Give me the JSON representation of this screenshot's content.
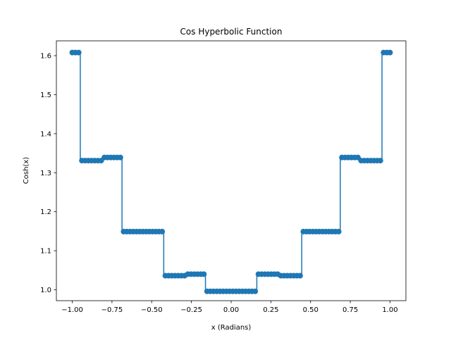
{
  "chart_data": {
    "type": "line",
    "title": "Cos Hyperbolic Function",
    "xlabel": "x (Radians)",
    "ylabel": "Cosh(x)",
    "xlim": [
      -1.1,
      1.1
    ],
    "ylim": [
      0.972,
      1.638
    ],
    "xticks": [
      -1.0,
      -0.75,
      -0.5,
      -0.25,
      0.0,
      0.25,
      0.5,
      0.75,
      1.0
    ],
    "xtick_labels": [
      "−1.00",
      "−0.75",
      "−0.50",
      "−0.25",
      "0.00",
      "0.25",
      "0.50",
      "0.75",
      "1.00"
    ],
    "yticks": [
      1.0,
      1.1,
      1.2,
      1.3,
      1.4,
      1.5,
      1.6
    ],
    "ytick_labels": [
      "1.0",
      "1.1",
      "1.2",
      "1.3",
      "1.4",
      "1.5",
      "1.6"
    ],
    "grid": false,
    "series": [
      {
        "color": "#1f77b4",
        "marker": "circle",
        "drawstyle": "steps",
        "x_start": -1.0,
        "x_end": 1.0,
        "count": 100,
        "levels": [
          {
            "x_min": -1.0,
            "x_max": -0.94,
            "y": 1.608
          },
          {
            "x_min": -0.93,
            "x_max": -0.81,
            "y": 1.331
          },
          {
            "x_min": -0.8,
            "x_max": -0.68,
            "y": 1.339
          },
          {
            "x_min": -0.67,
            "x_max": -0.43,
            "y": 1.149
          },
          {
            "x_min": -0.42,
            "x_max": -0.29,
            "y": 1.036
          },
          {
            "x_min": -0.28,
            "x_max": -0.16,
            "y": 1.04
          },
          {
            "x_min": -0.15,
            "x_max": 0.16,
            "y": 0.996
          },
          {
            "x_min": 0.17,
            "x_max": 0.31,
            "y": 1.04
          },
          {
            "x_min": 0.32,
            "x_max": 0.44,
            "y": 1.036
          },
          {
            "x_min": 0.45,
            "x_max": 0.68,
            "y": 1.149
          },
          {
            "x_min": 0.69,
            "x_max": 0.81,
            "y": 1.339
          },
          {
            "x_min": 0.82,
            "x_max": 0.94,
            "y": 1.331
          },
          {
            "x_min": 0.95,
            "x_max": 1.0,
            "y": 1.608
          }
        ]
      }
    ]
  }
}
